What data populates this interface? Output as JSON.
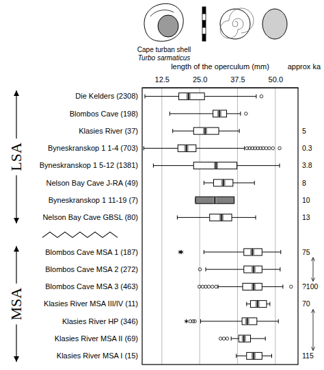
{
  "chart_data": {
    "type": "box",
    "orientation": "horizontal",
    "illustration_title": "Cape turban shell",
    "illustration_species": "Turbo sarmaticus",
    "x_label": "length of the operculum (mm)",
    "xlim": [
      6,
      57.5
    ],
    "xticks": [
      12.5,
      {
        "value": 25,
        "label": "25.0"
      },
      37.5,
      {
        "value": 50,
        "label": "50.0"
      }
    ],
    "grid": true,
    "tick_labels": "x",
    "color": "#ffffff",
    "categories": [
      "Die Kelders (2308)",
      "Blombos Cave (198)",
      "Klasies River (37)",
      "Byneskranskop 1 1-4 (703)",
      "Byneskranskop 1 5-12 (1381)",
      "Nelson Bay Cave J-RA (49)",
      "Byneskranskop 1 11-19 (7)",
      "Nelson Bay Cave GBSL (80)",
      "Blombos Cave MSA 1 (187)",
      "Blombos Cave MSA 2 (272)",
      "Blombos Cave MSA 3 (463)",
      "Klasies River MSA III/IV (11)",
      "Klasies River HP (346)",
      "Klasies River MSA II (69)",
      "Klasies River MSA I (15)"
    ],
    "boxes": [
      {
        "whislo": 6.9,
        "q1": 18.1,
        "med": 21.3,
        "q3": 26.6,
        "whishi": 43.7,
        "fliers": [
          45.4
        ]
      },
      {
        "whislo": 15.1,
        "q1": 29.4,
        "med": 31.5,
        "q3": 33.9,
        "whishi": 38.5,
        "fliers": [
          40.3
        ]
      },
      {
        "whislo": 16.1,
        "q1": 23.0,
        "med": 26.8,
        "q3": 31.3,
        "whishi": 38.1
      },
      {
        "whislo": 6.5,
        "q1": 17.8,
        "med": 20.6,
        "q3": 23.8,
        "whishi": 39.8,
        "fliers": [
          40.6,
          41.5,
          42.4,
          43.3,
          44.2,
          45.1,
          46.0,
          47.0,
          48.0,
          49.2,
          51.4
        ]
      },
      {
        "whislo": 9.7,
        "q1": 23.0,
        "med": 30.4,
        "q3": 37.3,
        "whishi": 51.4
      },
      {
        "whislo": 26.4,
        "q1": 29.6,
        "med": 32.8,
        "q3": 36.0,
        "whishi": 43.1
      },
      {
        "whislo": 23.6,
        "q1": 23.6,
        "med": 30.0,
        "q3": 36.4,
        "whishi": 36.4,
        "color": "#808080"
      },
      {
        "whislo": 17.6,
        "q1": 28.3,
        "med": 32.2,
        "q3": 35.6,
        "whishi": 43.5
      },
      {
        "whislo": 26.4,
        "q1": 39.6,
        "med": 42.4,
        "q3": 45.6,
        "whishi": 51.8,
        "extremes": [
          18.5,
          19.0
        ]
      },
      {
        "whislo": 27.0,
        "q1": 39.6,
        "med": 42.8,
        "q3": 45.6,
        "whishi": 51.6,
        "fliers": [
          25.1
        ]
      },
      {
        "whislo": 31.1,
        "q1": 39.2,
        "med": 42.8,
        "q3": 45.6,
        "whishi": 52.5,
        "fliers": [
          24.9,
          26.0,
          27.0,
          28.0,
          29.2,
          30.4,
          55.2
        ]
      },
      {
        "whislo": 40.5,
        "q1": 41.8,
        "med": 44.1,
        "q3": 47.1,
        "whishi": 48.2
      },
      {
        "whislo": 25.3,
        "q1": 39.0,
        "med": 40.7,
        "q3": 43.9,
        "whishi": 51.0,
        "fliers": [
          21.9,
          22.8,
          23.4
        ],
        "extremes": [
          20.6
        ]
      },
      {
        "whislo": 35.4,
        "q1": 37.9,
        "med": 39.6,
        "q3": 41.8,
        "whishi": 46.7,
        "fliers": [
          31.9,
          33.0,
          34.1
        ]
      },
      {
        "whislo": 37.1,
        "q1": 40.5,
        "med": 42.8,
        "q3": 45.6,
        "whishi": 48.8
      }
    ],
    "age_label": "approx ka",
    "ages": [
      null,
      null,
      "5",
      "0.3",
      "3.8",
      "8",
      "10",
      "13",
      "75",
      null,
      "?100",
      "70",
      null,
      null,
      "115"
    ],
    "groups": [
      {
        "name": "LSA",
        "first": 0,
        "last": 7
      },
      {
        "name": "MSA",
        "first": 8,
        "last": 14
      }
    ]
  }
}
